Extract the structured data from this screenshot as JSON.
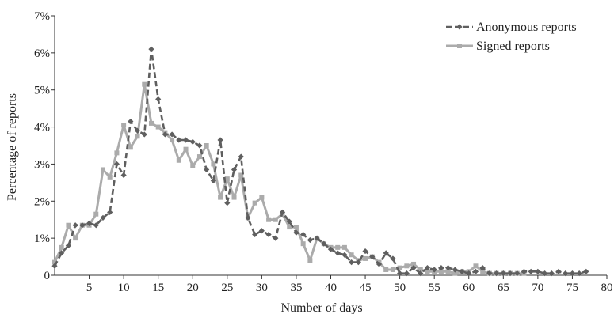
{
  "chart_data": {
    "type": "line",
    "title": "",
    "xlabel": "Number of days",
    "ylabel": "Percentage of reports",
    "xlim": [
      0,
      80
    ],
    "ylim": [
      0,
      7
    ],
    "xticks": [
      5,
      10,
      15,
      20,
      25,
      30,
      35,
      40,
      45,
      50,
      55,
      60,
      65,
      70,
      75,
      80
    ],
    "xtick_labels": [
      "5",
      "10",
      "15",
      "20",
      "25",
      "30",
      "35",
      "40",
      "45",
      "50",
      "55",
      "60",
      "65",
      "70",
      "75",
      "80"
    ],
    "yticks": [
      0,
      1,
      2,
      3,
      4,
      5,
      6,
      7
    ],
    "ytick_labels": [
      "0",
      "1%",
      "2%",
      "3%",
      "4%",
      "5%",
      "6%",
      "7%"
    ],
    "grid": false,
    "legend_position": "top-right",
    "series": [
      {
        "name": "Anonymous reports",
        "color": "#5f5f5f",
        "dash": "dashed",
        "marker": "diamond",
        "x": [
          0,
          1,
          2,
          3,
          4,
          5,
          6,
          7,
          8,
          9,
          10,
          11,
          12,
          13,
          14,
          15,
          16,
          17,
          18,
          19,
          20,
          21,
          22,
          23,
          24,
          25,
          26,
          27,
          28,
          29,
          30,
          31,
          32,
          33,
          34,
          35,
          36,
          37,
          38,
          39,
          40,
          41,
          42,
          43,
          44,
          45,
          46,
          47,
          48,
          49,
          50,
          51,
          52,
          53,
          54,
          55,
          56,
          57,
          58,
          59,
          60,
          61,
          62,
          63,
          64,
          65,
          66,
          67,
          68,
          69,
          70,
          71,
          72,
          73,
          74,
          75,
          76,
          77
        ],
        "values": [
          0.25,
          0.6,
          0.8,
          1.35,
          1.35,
          1.4,
          1.35,
          1.55,
          1.7,
          3.0,
          2.7,
          4.15,
          3.9,
          3.8,
          6.1,
          4.75,
          3.8,
          3.8,
          3.65,
          3.65,
          3.6,
          3.5,
          2.85,
          2.55,
          3.65,
          1.95,
          2.85,
          3.2,
          1.55,
          1.1,
          1.2,
          1.1,
          1.0,
          1.7,
          1.45,
          1.15,
          1.1,
          0.95,
          1.0,
          0.85,
          0.7,
          0.6,
          0.55,
          0.35,
          0.35,
          0.65,
          0.5,
          0.3,
          0.6,
          0.45,
          0.05,
          0.05,
          0.2,
          0.05,
          0.2,
          0.15,
          0.2,
          0.2,
          0.15,
          0.1,
          0.05,
          0.1,
          0.2,
          0.05,
          0.05,
          0.05,
          0.05,
          0.05,
          0.1,
          0.1,
          0.1,
          0.05,
          0.05,
          0.1,
          0.05,
          0.05,
          0.05,
          0.1
        ]
      },
      {
        "name": "Signed reports",
        "color": "#ababab",
        "dash": "solid",
        "marker": "square",
        "x": [
          0,
          1,
          2,
          3,
          4,
          5,
          6,
          7,
          8,
          9,
          10,
          11,
          12,
          13,
          14,
          15,
          16,
          17,
          18,
          19,
          20,
          21,
          22,
          23,
          24,
          25,
          26,
          27,
          28,
          29,
          30,
          31,
          32,
          33,
          34,
          35,
          36,
          37,
          38,
          39,
          40,
          41,
          42,
          43,
          44,
          45,
          46,
          47,
          48,
          49,
          50,
          51,
          52,
          53,
          54,
          55,
          56,
          57,
          58,
          59,
          60,
          61,
          62,
          63,
          64,
          65,
          66,
          67,
          68
        ],
        "values": [
          0.35,
          0.75,
          1.35,
          1.0,
          1.35,
          1.35,
          1.65,
          2.85,
          2.65,
          3.3,
          4.05,
          3.45,
          3.75,
          5.15,
          4.1,
          4.0,
          3.85,
          3.65,
          3.1,
          3.4,
          2.95,
          3.2,
          3.5,
          3.0,
          2.1,
          2.6,
          2.1,
          2.7,
          1.55,
          1.95,
          2.1,
          1.5,
          1.5,
          1.65,
          1.3,
          1.3,
          0.85,
          0.4,
          1.0,
          0.85,
          0.75,
          0.75,
          0.75,
          0.55,
          0.4,
          0.45,
          0.5,
          0.35,
          0.15,
          0.15,
          0.2,
          0.25,
          0.3,
          0.15,
          0.1,
          0.1,
          0.1,
          0.1,
          0.05,
          0.1,
          0.1,
          0.25,
          0.1,
          0.05,
          0.05,
          0.05,
          0.05,
          0.05,
          0.05
        ]
      }
    ]
  }
}
